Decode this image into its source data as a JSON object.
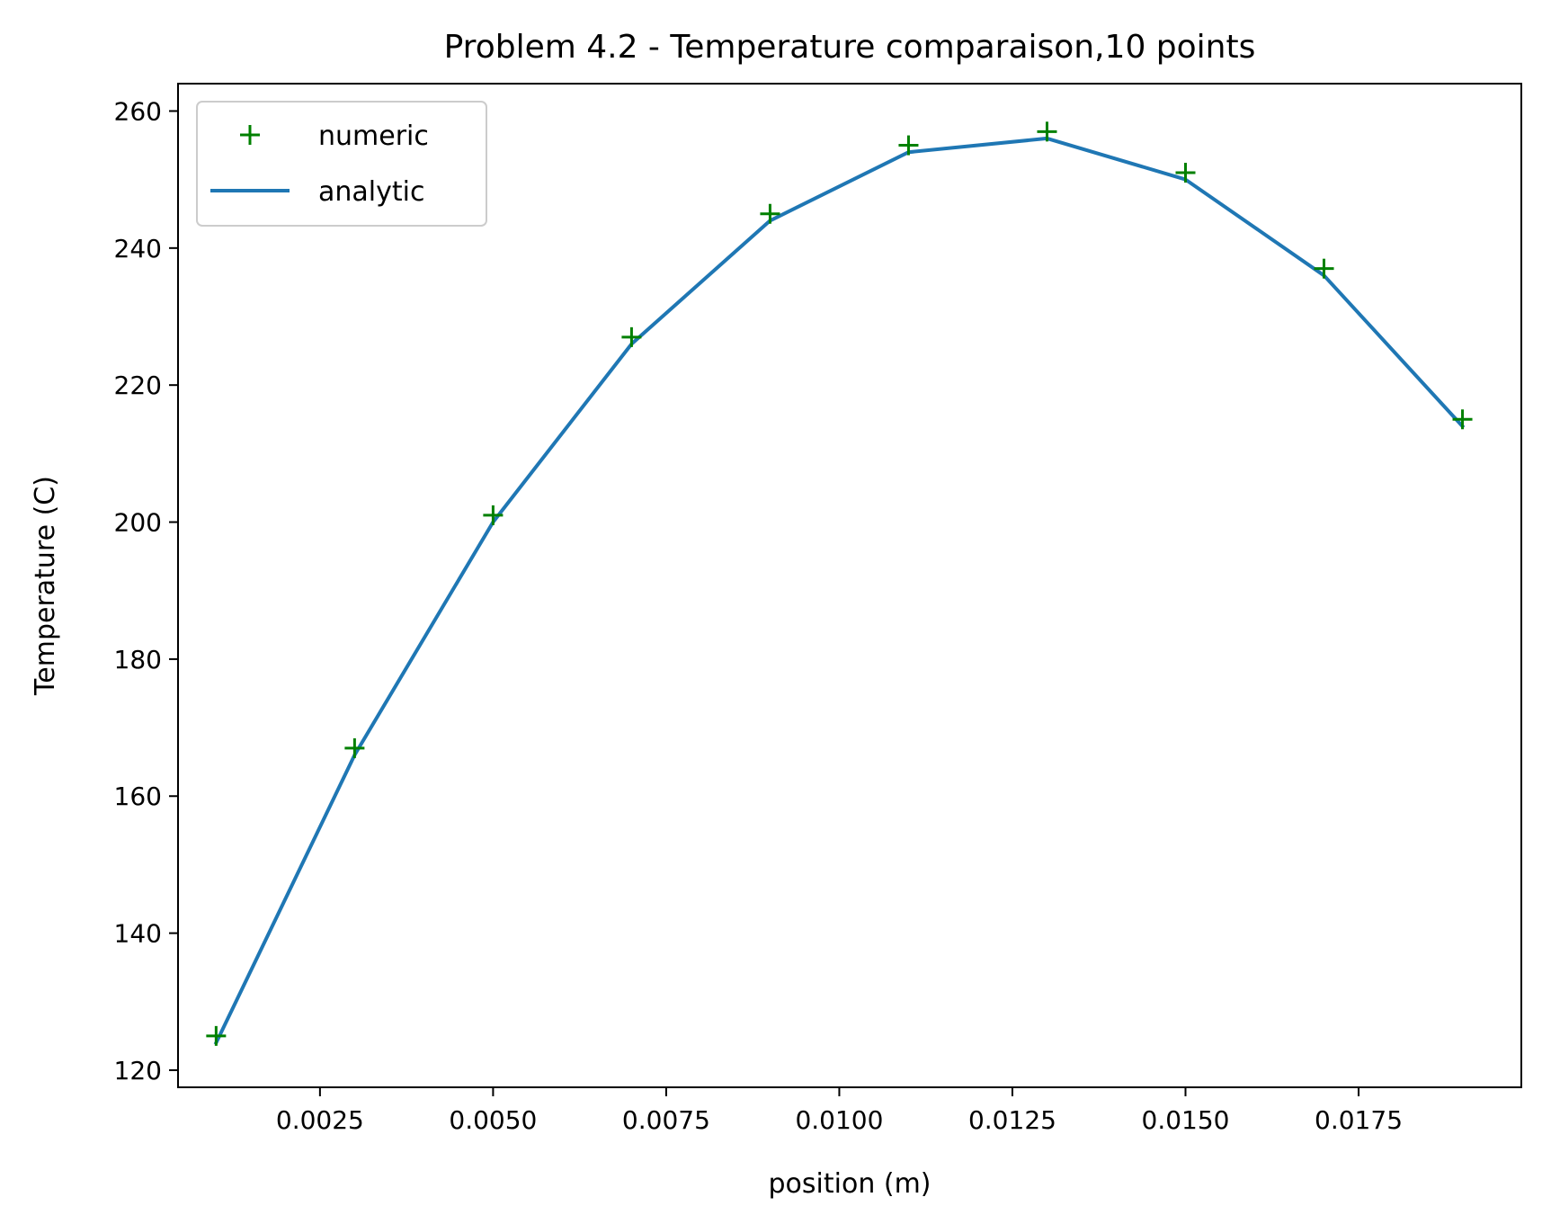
{
  "chart_data": {
    "type": "line",
    "title": "Problem 4.2 - Temperature comparaison,10 points",
    "xlabel": "position (m)",
    "ylabel": "Temperature (C)",
    "xlim": [
      0.00045,
      0.01985
    ],
    "ylim": [
      117.5,
      264
    ],
    "xticks": [
      0.0025,
      0.005,
      0.0075,
      0.01,
      0.0125,
      0.015,
      0.0175
    ],
    "xtick_labels": [
      "0.0025",
      "0.0050",
      "0.0075",
      "0.0100",
      "0.0125",
      "0.0150",
      "0.0175"
    ],
    "yticks": [
      120,
      140,
      160,
      180,
      200,
      220,
      240,
      260
    ],
    "ytick_labels": [
      "120",
      "140",
      "160",
      "180",
      "200",
      "220",
      "240",
      "260"
    ],
    "grid": false,
    "legend_position": "top-left",
    "x": [
      0.001,
      0.003,
      0.005,
      0.007,
      0.009,
      0.011,
      0.013,
      0.015,
      0.017,
      0.019
    ],
    "series": [
      {
        "name": "numeric",
        "style": "marker-plus",
        "color": "#008000",
        "values": [
          125,
          167,
          201,
          227,
          245,
          255,
          257,
          251,
          237,
          215
        ]
      },
      {
        "name": "analytic",
        "style": "line",
        "color": "#1f77b4",
        "values": [
          124,
          166,
          200,
          226,
          244,
          254,
          256,
          250,
          236,
          214
        ]
      }
    ]
  }
}
